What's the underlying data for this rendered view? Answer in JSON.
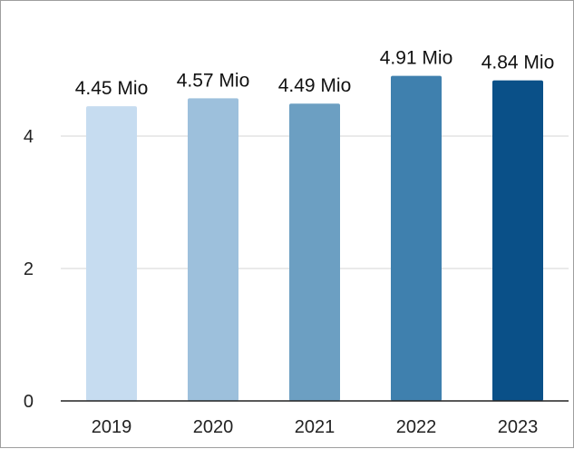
{
  "chart_data": {
    "type": "bar",
    "title": "",
    "xlabel": "",
    "ylabel": "",
    "categories": [
      "2019",
      "2020",
      "2021",
      "2022",
      "2023"
    ],
    "values": [
      4.45,
      4.57,
      4.49,
      4.91,
      4.84
    ],
    "data_labels": [
      "4.45 Mio",
      "4.57 Mio",
      "4.49 Mio",
      "4.91 Mio",
      "4.84 Mio"
    ],
    "colors": [
      "#c6dcf0",
      "#9dc0dc",
      "#6c9fc2",
      "#3f80ae",
      "#0a5088"
    ],
    "ylim": [
      0,
      6
    ],
    "yticks": [
      0,
      2,
      4
    ],
    "grid": true,
    "legend": "none"
  }
}
